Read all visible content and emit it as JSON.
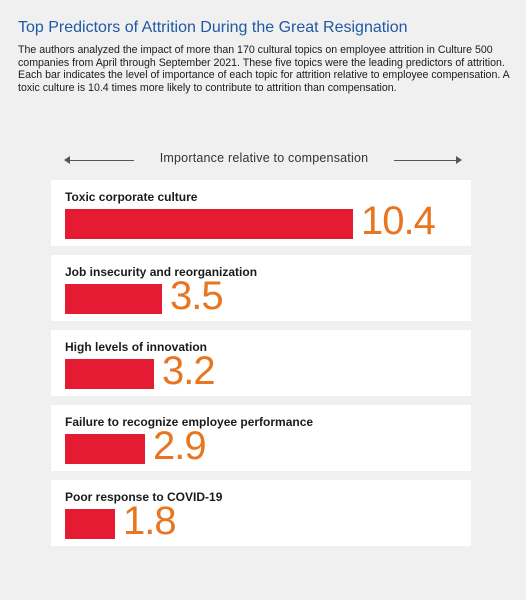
{
  "header": {
    "title": "Top Predictors of Attrition During the Great Resignation",
    "description": "The authors analyzed the impact of more than 170 cultural topics on employee attrition in Culture 500 companies from April through September 2021. These five topics were the leading predictors of attrition. Each bar indicates the level of importance of each topic for attrition relative to employee compensation. A toxic culture is 10.4 times more likely to contribute to attrition than compensation."
  },
  "axis": {
    "caption": "Importance relative to compensation"
  },
  "colors": {
    "title": "#1f5aa3",
    "bar": "#e41b33",
    "value": "#e8751f",
    "card": "#ffffff",
    "background": "#f0f0f0"
  },
  "chart_data": {
    "type": "bar",
    "orientation": "horizontal",
    "title": "Top Predictors of Attrition During the Great Resignation",
    "xlabel": "Importance relative to compensation",
    "ylabel": "",
    "categories": [
      "Toxic corporate culture",
      "Job insecurity and reorganization",
      "High levels of innovation",
      "Failure to recognize employee performance",
      "Poor response to COVID-19"
    ],
    "values": [
      10.4,
      3.5,
      3.2,
      2.9,
      1.8
    ],
    "xlim": [
      0,
      10.4
    ],
    "grid": false,
    "legend": "none"
  }
}
